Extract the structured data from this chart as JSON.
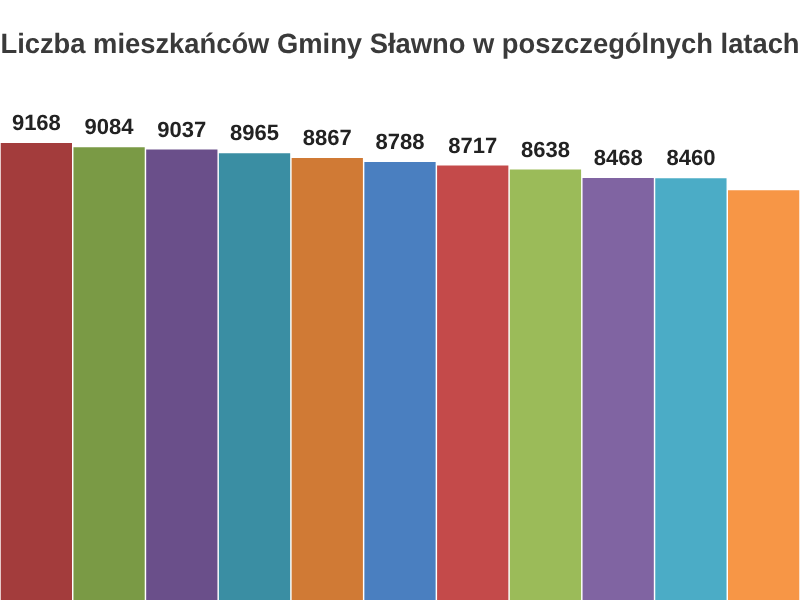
{
  "chart_data": {
    "type": "bar",
    "title": "Liczba mieszkańców Gminy Sławno w poszczególnych latach",
    "categories": [
      null,
      null,
      null,
      null,
      null,
      null,
      null,
      null,
      null,
      null,
      null
    ],
    "values": [
      9168,
      9084,
      9037,
      8965,
      8867,
      8788,
      8717,
      8638,
      8468,
      8460,
      8220
    ],
    "value_labels": [
      "9168",
      "9084",
      "9037",
      "8965",
      "8867",
      "8788",
      "8717",
      "8638",
      "8468",
      "8460",
      null
    ],
    "colors": [
      "#a33c3c",
      "#7a9a45",
      "#6a4f8a",
      "#3a8ea3",
      "#d07a35",
      "#4a7fc0",
      "#c44a4a",
      "#9bbb59",
      "#8064a2",
      "#4bacc6",
      "#f79646"
    ],
    "tick_labels": false,
    "legend": false
  }
}
